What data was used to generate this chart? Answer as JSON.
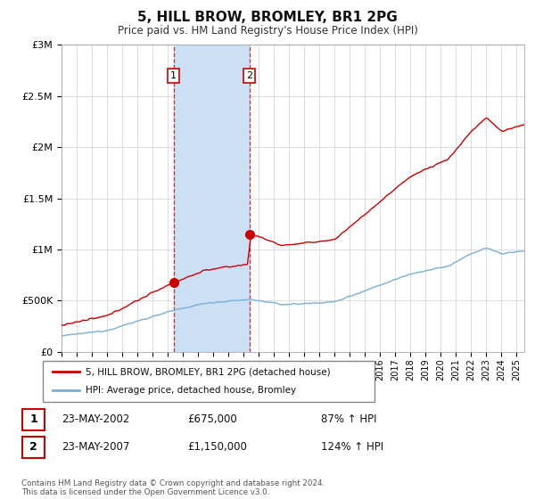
{
  "title": "5, HILL BROW, BROMLEY, BR1 2PG",
  "subtitle": "Price paid vs. HM Land Registry's House Price Index (HPI)",
  "legend_line1": "5, HILL BROW, BROMLEY, BR1 2PG (detached house)",
  "legend_line2": "HPI: Average price, detached house, Bromley",
  "transaction1": {
    "label": "1",
    "date": "23-MAY-2002",
    "price": 675000,
    "pct": "87%",
    "dir": "↑",
    "year": 2002.38
  },
  "transaction2": {
    "label": "2",
    "date": "23-MAY-2007",
    "price": 1150000,
    "pct": "124%",
    "dir": "↑",
    "year": 2007.38
  },
  "shade_color": "#cce0f5",
  "red_color": "#cc0000",
  "blue_color": "#7ab0d4",
  "title_color": "#000000",
  "background_color": "#ffffff",
  "grid_color": "#d0d0d0",
  "footer": "Contains HM Land Registry data © Crown copyright and database right 2024.\nThis data is licensed under the Open Government Licence v3.0.",
  "ylim": [
    0,
    3000000
  ],
  "xlim_start": 1995.0,
  "xlim_end": 2025.5
}
